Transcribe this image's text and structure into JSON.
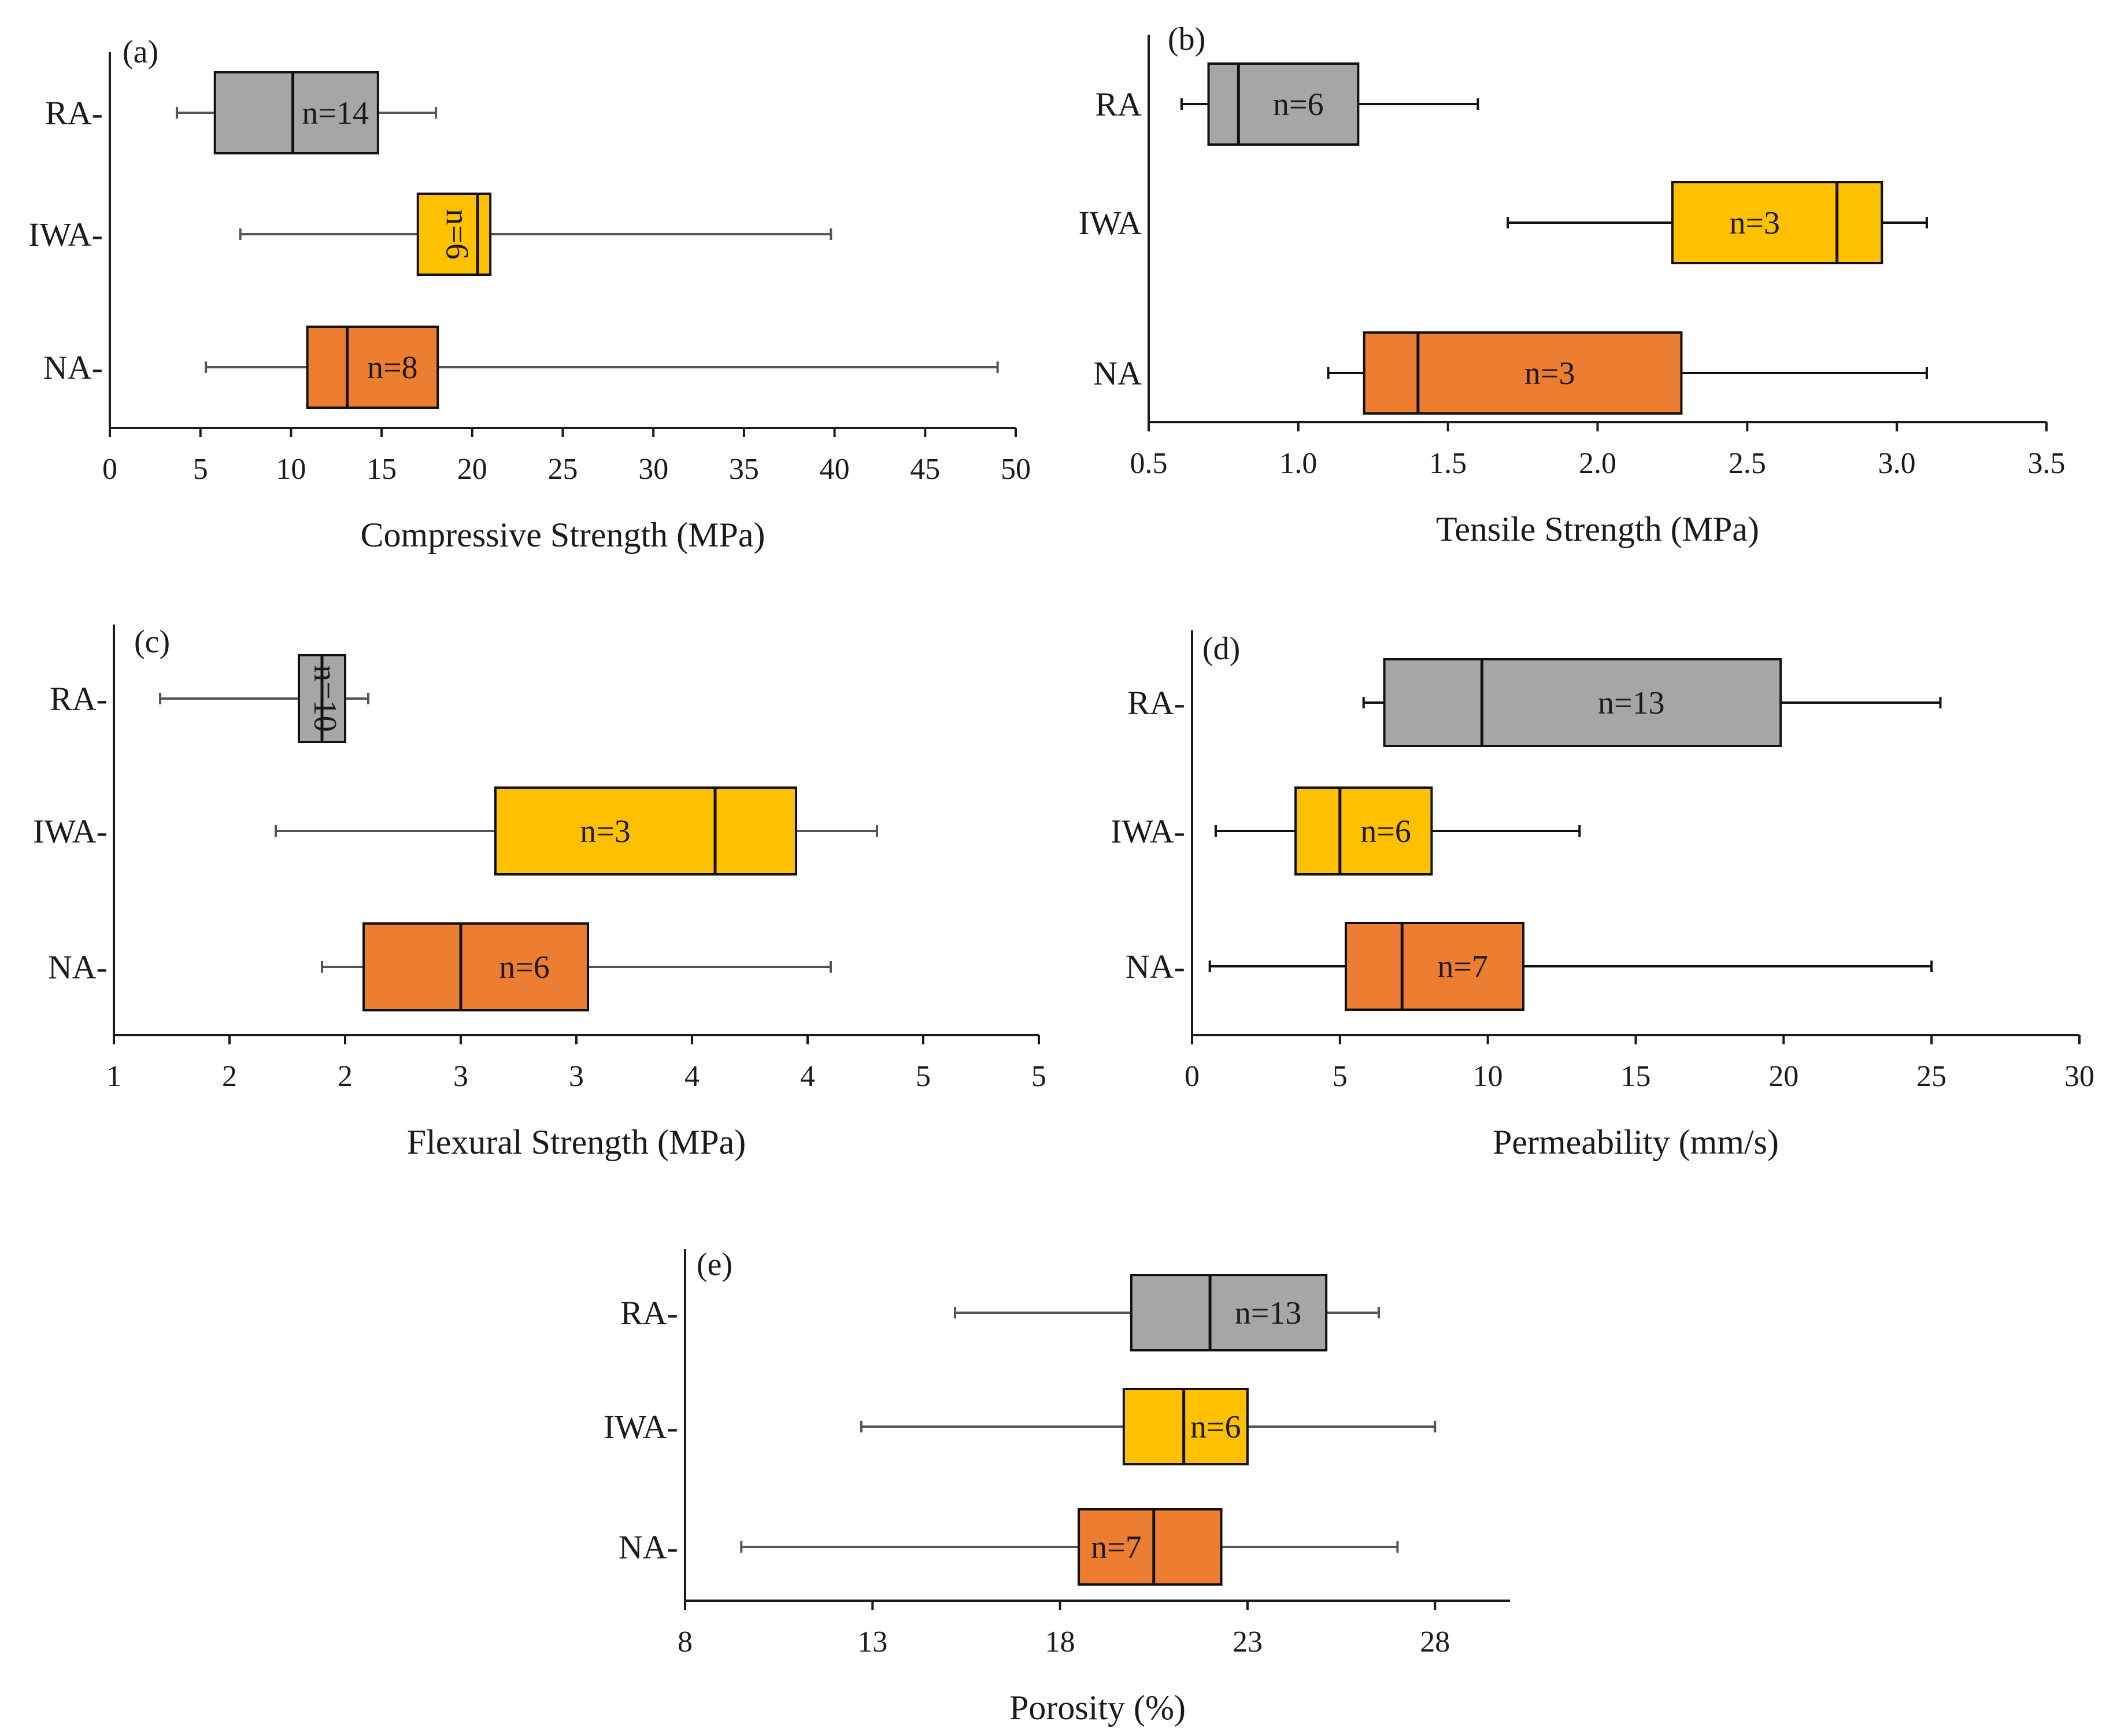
{
  "colors": {
    "RA": "#a6a6a6",
    "IWA": "#ffc000",
    "NA": "#ed7d31"
  },
  "chart_data": [
    {
      "type": "boxplot",
      "panel": "(a)",
      "xlabel": "Compressive Strength (MPa)",
      "xlim": [
        0,
        50
      ],
      "xticks": [
        0,
        5,
        10,
        15,
        20,
        25,
        30,
        35,
        40,
        45,
        50
      ],
      "tick_labels": [
        "0",
        "5",
        "10",
        "15",
        "20",
        "25",
        "30",
        "35",
        "40",
        "45",
        "50"
      ],
      "categories": [
        "RA-",
        "IWA-",
        "NA-"
      ],
      "series": [
        {
          "name": "RA",
          "min": 3.7,
          "q1": 5.8,
          "median": 10.1,
          "q3": 14.8,
          "max": 18.0,
          "n_label": "n=14",
          "n_rotated": false
        },
        {
          "name": "IWA",
          "min": 7.2,
          "q1": 17.0,
          "median": 20.3,
          "q3": 21.0,
          "max": 39.8,
          "n_label": "n=6",
          "n_rotated": true
        },
        {
          "name": "NA",
          "min": 5.3,
          "q1": 10.9,
          "median": 13.1,
          "q3": 18.1,
          "max": 49.0,
          "n_label": "n=8",
          "n_rotated": false
        }
      ]
    },
    {
      "type": "boxplot",
      "panel": "(b)",
      "xlabel": "Tensile Strength (MPa)",
      "xlim": [
        0.5,
        3.5
      ],
      "xticks": [
        0.5,
        1.0,
        1.5,
        2.0,
        2.5,
        3.0,
        3.5
      ],
      "tick_labels": [
        "0.5",
        "1.0",
        "1.5",
        "2.0",
        "2.5",
        "3.0",
        "3.5"
      ],
      "categories": [
        "RA",
        "IWA",
        "NA"
      ],
      "series": [
        {
          "name": "RA",
          "min": 0.61,
          "q1": 0.7,
          "median": 0.8,
          "q3": 1.2,
          "max": 1.6,
          "n_label": "n=6",
          "n_rotated": false
        },
        {
          "name": "IWA",
          "min": 1.7,
          "q1": 2.25,
          "median": 2.8,
          "q3": 2.95,
          "max": 3.1,
          "n_label": "n=3",
          "n_rotated": false
        },
        {
          "name": "NA",
          "min": 1.1,
          "q1": 1.22,
          "median": 1.4,
          "q3": 2.28,
          "max": 3.1,
          "n_label": "n=3",
          "n_rotated": false
        }
      ]
    },
    {
      "type": "boxplot",
      "panel": "(c)",
      "xlabel": "Flexural Strength (MPa)",
      "xlim": [
        1,
        5
      ],
      "xticks": [
        1,
        1.5,
        2,
        2.5,
        3,
        3.5,
        4,
        4.5,
        5
      ],
      "tick_labels": [
        "1",
        "2",
        "2",
        "3",
        "3",
        "4",
        "4",
        "5",
        "5"
      ],
      "categories": [
        "RA-",
        "IWA-",
        "NA-"
      ],
      "series": [
        {
          "name": "RA",
          "min": 1.2,
          "q1": 1.8,
          "median": 1.9,
          "q3": 2.0,
          "max": 2.1,
          "n_label": "n=10",
          "n_rotated": true
        },
        {
          "name": "IWA",
          "min": 1.7,
          "q1": 2.65,
          "median": 3.6,
          "q3": 3.95,
          "max": 4.3,
          "n_label": "n=3",
          "n_rotated": false
        },
        {
          "name": "NA",
          "min": 1.9,
          "q1": 2.08,
          "median": 2.5,
          "q3": 3.05,
          "max": 4.1,
          "n_label": "n=6",
          "n_rotated": false
        }
      ]
    },
    {
      "type": "boxplot",
      "panel": "(d)",
      "xlabel": "Permeability (mm/s)",
      "xlim": [
        0,
        30
      ],
      "xticks": [
        0,
        5,
        10,
        15,
        20,
        25,
        30
      ],
      "tick_labels": [
        "0",
        "5",
        "10",
        "15",
        "20",
        "25",
        "30"
      ],
      "categories": [
        "RA-",
        "IWA-",
        "NA-"
      ],
      "series": [
        {
          "name": "RA",
          "min": 5.8,
          "q1": 6.5,
          "median": 9.8,
          "q3": 19.9,
          "max": 25.3,
          "n_label": "n=13",
          "n_rotated": false
        },
        {
          "name": "IWA",
          "min": 0.8,
          "q1": 3.5,
          "median": 5.0,
          "q3": 8.1,
          "max": 13.1,
          "n_label": "n=6",
          "n_rotated": false
        },
        {
          "name": "NA",
          "min": 0.6,
          "q1": 5.2,
          "median": 7.1,
          "q3": 11.2,
          "max": 25.0,
          "n_label": "n=7",
          "n_rotated": false
        }
      ]
    },
    {
      "type": "boxplot",
      "panel": "(e)",
      "xlabel": "Porosity (%)",
      "xlim": [
        8,
        30
      ],
      "xticks": [
        8,
        13,
        18,
        23,
        28
      ],
      "tick_labels": [
        "8",
        "13",
        "18",
        "23",
        "28"
      ],
      "categories": [
        "RA-",
        "IWA-",
        "NA-"
      ],
      "series": [
        {
          "name": "RA",
          "min": 15.2,
          "q1": 19.9,
          "median": 22.0,
          "q3": 25.1,
          "max": 26.5,
          "n_label": "n=13",
          "n_rotated": false
        },
        {
          "name": "IWA",
          "min": 12.7,
          "q1": 19.7,
          "median": 21.3,
          "q3": 23.0,
          "max": 28.0,
          "n_label": "n=6",
          "n_rotated": false
        },
        {
          "name": "NA",
          "min": 9.5,
          "q1": 18.5,
          "median": 20.5,
          "q3": 22.3,
          "max": 27.0,
          "n_label": "n=7",
          "n_rotated": false
        }
      ]
    }
  ]
}
